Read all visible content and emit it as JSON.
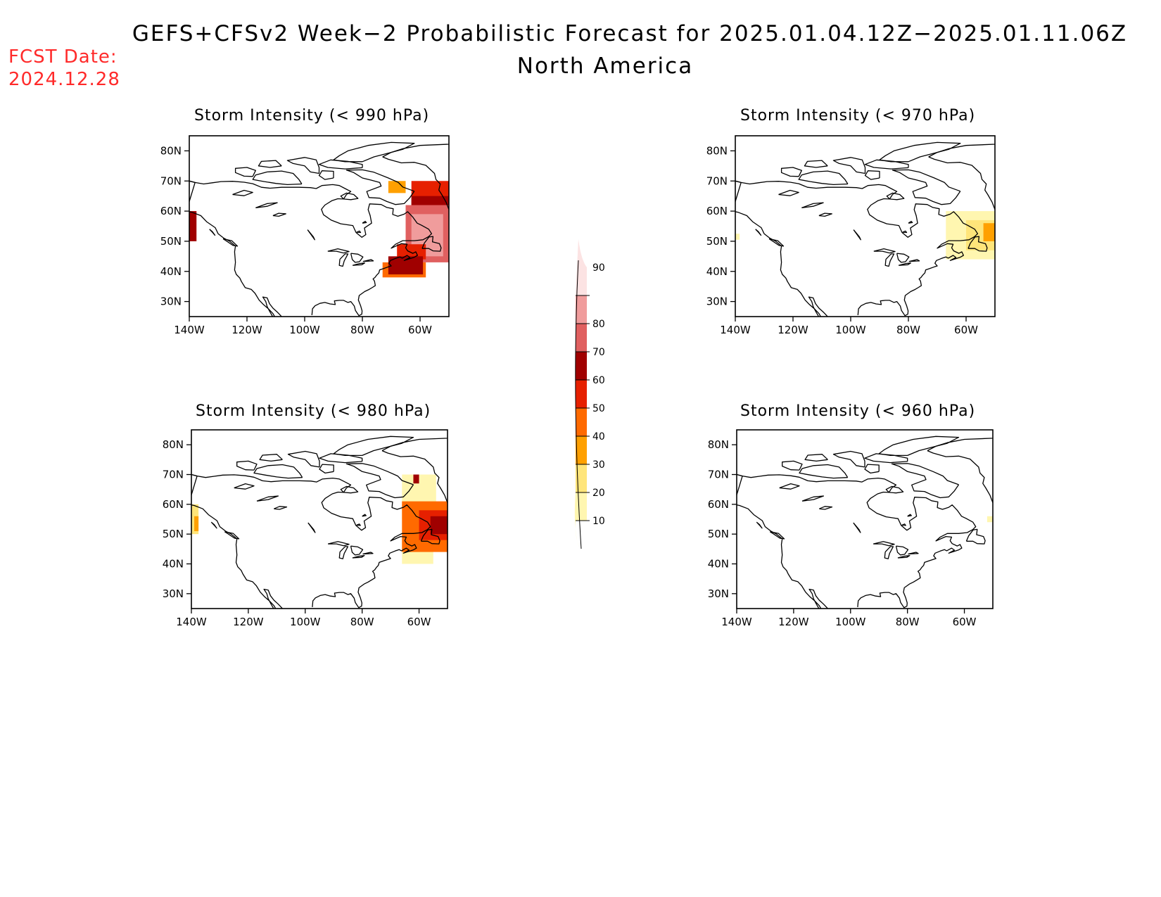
{
  "title": {
    "line1": "GEFS+CFSv2 Week−2 Probabilistic Forecast for 2025.01.04.12Z−2025.01.11.06Z",
    "line2": "North America"
  },
  "forecast_date": {
    "label": "FCST Date:",
    "value": "2024.12.28"
  },
  "axes": {
    "lat_labels": [
      "80N",
      "70N",
      "60N",
      "50N",
      "40N",
      "30N"
    ],
    "lon_labels": [
      "140W",
      "120W",
      "100W",
      "80W",
      "60W"
    ]
  },
  "colorbar": {
    "levels": [
      "10",
      "20",
      "30",
      "40",
      "50",
      "60",
      "70",
      "80",
      "90"
    ],
    "colors": [
      "#fff6b0",
      "#ffe57a",
      "#ffa000",
      "#ff6a00",
      "#e62000",
      "#a00000",
      "#e06060",
      "#f09c9c",
      "#fce3e3"
    ]
  },
  "panels": [
    {
      "id": "p990",
      "title": "Storm Intensity (< 990 hPa)",
      "patches": [
        {
          "lon": -140,
          "lat": 50,
          "w": 2.5,
          "h": 10,
          "level": 6
        },
        {
          "lon": -71,
          "lat": 66,
          "w": 6,
          "h": 4,
          "level": 3
        },
        {
          "lon": -63,
          "lat": 62,
          "w": 13,
          "h": 8,
          "level": 5
        },
        {
          "lon": -63,
          "lat": 60,
          "w": 13,
          "h": 5,
          "level": 6
        },
        {
          "lon": -65,
          "lat": 43,
          "w": 15,
          "h": 19,
          "level": 7
        },
        {
          "lon": -63,
          "lat": 45,
          "w": 11,
          "h": 14,
          "level": 8
        },
        {
          "lon": -68,
          "lat": 44,
          "w": 10,
          "h": 5,
          "level": 5
        },
        {
          "lon": -73,
          "lat": 38,
          "w": 15,
          "h": 5,
          "level": 4
        },
        {
          "lon": -71,
          "lat": 39,
          "w": 12,
          "h": 6,
          "level": 6
        }
      ]
    },
    {
      "id": "p970",
      "title": "Storm Intensity (< 970 hPa)",
      "patches": [
        {
          "lon": -140,
          "lat": 50.5,
          "w": 1.5,
          "h": 2,
          "level": 1
        },
        {
          "lon": -67,
          "lat": 44,
          "w": 17,
          "h": 16,
          "level": 1
        },
        {
          "lon": -60,
          "lat": 47,
          "w": 10,
          "h": 10,
          "level": 2
        },
        {
          "lon": -54,
          "lat": 50,
          "w": 4,
          "h": 6,
          "level": 3
        }
      ]
    },
    {
      "id": "p980",
      "title": "Storm Intensity (< 980 hPa)",
      "patches": [
        {
          "lon": -140,
          "lat": 50,
          "w": 2.5,
          "h": 10,
          "level": 2
        },
        {
          "lon": -139,
          "lat": 51,
          "w": 1.5,
          "h": 5,
          "level": 3
        },
        {
          "lon": -66,
          "lat": 40,
          "w": 11,
          "h": 8,
          "level": 1
        },
        {
          "lon": -66,
          "lat": 55,
          "w": 12,
          "h": 15,
          "level": 1
        },
        {
          "lon": -66,
          "lat": 44,
          "w": 16,
          "h": 17,
          "level": 4
        },
        {
          "lon": -60,
          "lat": 48,
          "w": 10,
          "h": 10,
          "level": 5
        },
        {
          "lon": -56,
          "lat": 50,
          "w": 6,
          "h": 6,
          "level": 6
        },
        {
          "lon": -62,
          "lat": 67,
          "w": 2,
          "h": 3,
          "level": 6
        }
      ]
    },
    {
      "id": "p960",
      "title": "Storm Intensity (< 960 hPa)",
      "patches": [
        {
          "lon": -52,
          "lat": 54,
          "w": 2,
          "h": 2,
          "level": 1
        }
      ]
    }
  ]
}
